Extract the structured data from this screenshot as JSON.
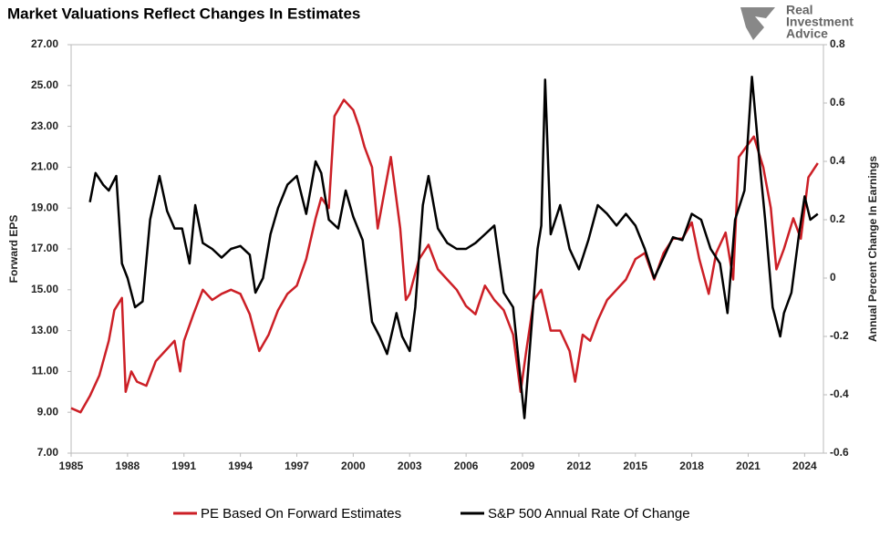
{
  "chart_data": {
    "type": "line",
    "title": "Market Valuations Reflect Changes In Estimates",
    "y_label": "Forward EPS",
    "y2_label": "Annual Percent Change In Earnings",
    "logo": [
      "Real",
      "Investment",
      "Advice"
    ],
    "xlim": [
      1985,
      2025
    ],
    "xticks": [
      1985,
      1988,
      1991,
      1994,
      1997,
      2000,
      2003,
      2006,
      2009,
      2012,
      2015,
      2018,
      2021,
      2024
    ],
    "ylim": [
      7,
      27
    ],
    "yticks": [
      {
        "value": 7,
        "label": "7.00"
      },
      {
        "value": 9,
        "label": "9.00"
      },
      {
        "value": 11,
        "label": "11.00"
      },
      {
        "value": 13,
        "label": "13.00"
      },
      {
        "value": 15,
        "label": "15.00"
      },
      {
        "value": 17,
        "label": "17.00"
      },
      {
        "value": 19,
        "label": "19.00"
      },
      {
        "value": 21,
        "label": "21.00"
      },
      {
        "value": 23,
        "label": "23.00"
      },
      {
        "value": 25,
        "label": "25.00"
      },
      {
        "value": 27,
        "label": "27.00"
      }
    ],
    "y2lim": [
      -0.6,
      0.8
    ],
    "y2ticks": [
      -0.6,
      -0.4,
      -0.2,
      0,
      0.2,
      0.4,
      0.6,
      0.8
    ],
    "legend": "bottom",
    "series": [
      {
        "name": "PE Based On Forward Estimates",
        "color": "#cc1f26",
        "x": [
          1985,
          1985.5,
          1986,
          1986.5,
          1987,
          1987.3,
          1987.7,
          1987.9,
          1988.2,
          1988.5,
          1989,
          1989.5,
          1990,
          1990.5,
          1990.8,
          1991,
          1991.5,
          1992,
          1992.5,
          1993,
          1993.5,
          1994,
          1994.5,
          1995,
          1995.5,
          1996,
          1996.5,
          1997,
          1997.5,
          1998,
          1998.3,
          1998.7,
          1999,
          1999.5,
          2000,
          2000.3,
          2000.6,
          2001,
          2001.3,
          2001.7,
          2002,
          2002.5,
          2002.8,
          2003,
          2003.5,
          2004,
          2004.5,
          2005,
          2005.5,
          2006,
          2006.5,
          2007,
          2007.5,
          2008,
          2008.5,
          2008.9,
          2009.2,
          2009.6,
          2010,
          2010.5,
          2011,
          2011.5,
          2011.8,
          2012.2,
          2012.6,
          2013,
          2013.5,
          2014,
          2014.5,
          2015,
          2015.5,
          2016,
          2016.5,
          2017,
          2017.5,
          2018,
          2018.4,
          2018.9,
          2019.3,
          2019.8,
          2020.2,
          2020.5,
          2020.9,
          2021.3,
          2021.8,
          2022.2,
          2022.5,
          2022.9,
          2023.4,
          2023.8,
          2024.2,
          2024.7
        ],
        "values": [
          9.2,
          9.0,
          9.8,
          10.8,
          12.5,
          14.0,
          14.6,
          10.0,
          11.0,
          10.5,
          10.3,
          11.5,
          12.0,
          12.5,
          11.0,
          12.5,
          13.8,
          15.0,
          14.5,
          14.8,
          15.0,
          14.8,
          13.8,
          12.0,
          12.8,
          14.0,
          14.8,
          15.2,
          16.5,
          18.5,
          19.5,
          19.0,
          23.5,
          24.3,
          23.8,
          23.0,
          22.0,
          21.0,
          18.0,
          20.0,
          21.5,
          18.0,
          14.5,
          14.8,
          16.5,
          17.2,
          16.0,
          15.5,
          15.0,
          14.2,
          13.8,
          15.2,
          14.5,
          14.0,
          12.8,
          10.0,
          12.0,
          14.5,
          15.0,
          13.0,
          13.0,
          12.0,
          10.5,
          12.8,
          12.5,
          13.5,
          14.5,
          15.0,
          15.5,
          16.5,
          16.8,
          15.5,
          16.8,
          17.5,
          17.5,
          18.3,
          16.5,
          14.8,
          16.8,
          17.8,
          15.5,
          21.5,
          22.0,
          22.5,
          21.0,
          19.0,
          16.0,
          17.0,
          18.5,
          17.5,
          20.5,
          21.2
        ]
      },
      {
        "name": "S&P 500 Annual Rate Of Change",
        "color": "#000000",
        "axis": "y2",
        "x": [
          1986,
          1986.3,
          1986.7,
          1987,
          1987.4,
          1987.7,
          1988,
          1988.4,
          1988.8,
          1989.2,
          1989.7,
          1990.1,
          1990.5,
          1990.9,
          1991.3,
          1991.6,
          1992,
          1992.5,
          1993,
          1993.5,
          1994,
          1994.5,
          1994.8,
          1995.2,
          1995.6,
          1996,
          1996.5,
          1997,
          1997.5,
          1998,
          1998.3,
          1998.7,
          1999.2,
          1999.6,
          2000,
          2000.5,
          2001,
          2001.4,
          2001.8,
          2002.3,
          2002.6,
          2003,
          2003.3,
          2003.7,
          2004,
          2004.5,
          2005,
          2005.5,
          2006,
          2006.5,
          2007,
          2007.5,
          2008,
          2008.5,
          2008.9,
          2009.1,
          2009.5,
          2009.8,
          2010,
          2010.2,
          2010.5,
          2011,
          2011.5,
          2012,
          2012.5,
          2013,
          2013.5,
          2014,
          2014.5,
          2015,
          2015.5,
          2016,
          2016.5,
          2017,
          2017.5,
          2018,
          2018.5,
          2019,
          2019.5,
          2019.9,
          2020.3,
          2020.8,
          2021.2,
          2021.6,
          2021.9,
          2022.3,
          2022.7,
          2022.9,
          2023.3,
          2023.7,
          2024,
          2024.3,
          2024.7
        ],
        "values": [
          0.26,
          0.36,
          0.32,
          0.3,
          0.35,
          0.05,
          0.0,
          -0.1,
          -0.08,
          0.2,
          0.35,
          0.23,
          0.17,
          0.17,
          0.05,
          0.25,
          0.12,
          0.1,
          0.07,
          0.1,
          0.11,
          0.08,
          -0.05,
          0.0,
          0.15,
          0.24,
          0.32,
          0.35,
          0.22,
          0.4,
          0.36,
          0.2,
          0.17,
          0.3,
          0.21,
          0.13,
          -0.15,
          -0.2,
          -0.26,
          -0.12,
          -0.2,
          -0.25,
          -0.1,
          0.25,
          0.35,
          0.17,
          0.12,
          0.1,
          0.1,
          0.12,
          0.15,
          0.18,
          -0.05,
          -0.1,
          -0.35,
          -0.48,
          -0.15,
          0.1,
          0.18,
          0.68,
          0.15,
          0.25,
          0.1,
          0.03,
          0.13,
          0.25,
          0.22,
          0.18,
          0.22,
          0.18,
          0.1,
          0.0,
          0.07,
          0.14,
          0.13,
          0.22,
          0.2,
          0.1,
          0.05,
          -0.12,
          0.2,
          0.3,
          0.69,
          0.4,
          0.2,
          -0.1,
          -0.2,
          -0.12,
          -0.05,
          0.15,
          0.28,
          0.2,
          0.22
        ]
      }
    ]
  }
}
